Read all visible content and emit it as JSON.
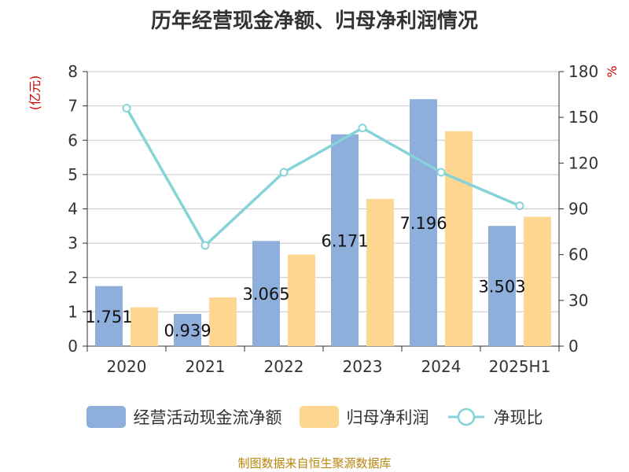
{
  "title": "历年经营现金净额、归母净利润情况",
  "source": "制图数据来自恒生聚源数据库",
  "chart_data": {
    "type": "bar",
    "categories": [
      "2020",
      "2021",
      "2022",
      "2023",
      "2024",
      "2025H1"
    ],
    "series": [
      {
        "name": "经营活动现金流净额",
        "type": "bar",
        "axis": "left",
        "color": "#8eaedb",
        "values": [
          1.751,
          0.939,
          3.065,
          6.171,
          7.196,
          3.503
        ],
        "labels": [
          "1.751",
          "0.939",
          "3.065",
          "6.171",
          "7.196",
          "3.503"
        ]
      },
      {
        "name": "归母净利润",
        "type": "bar",
        "axis": "left",
        "color": "#fdd692",
        "values": [
          1.13,
          1.42,
          2.67,
          4.29,
          6.26,
          3.77
        ]
      },
      {
        "name": "净现比",
        "type": "line",
        "axis": "right",
        "color": "#86d3d8",
        "values": [
          156,
          66,
          114,
          143,
          114,
          92
        ]
      }
    ],
    "ylabel": "(亿元)",
    "y2label": "%",
    "ylim": [
      0,
      8
    ],
    "y2lim": [
      0,
      180
    ],
    "yticks": [
      "0",
      "1",
      "2",
      "3",
      "4",
      "5",
      "6",
      "7",
      "8"
    ],
    "y2ticks": [
      "0",
      "30",
      "60",
      "90",
      "120",
      "150",
      "180"
    ],
    "grid": true,
    "legend": "bottom"
  }
}
